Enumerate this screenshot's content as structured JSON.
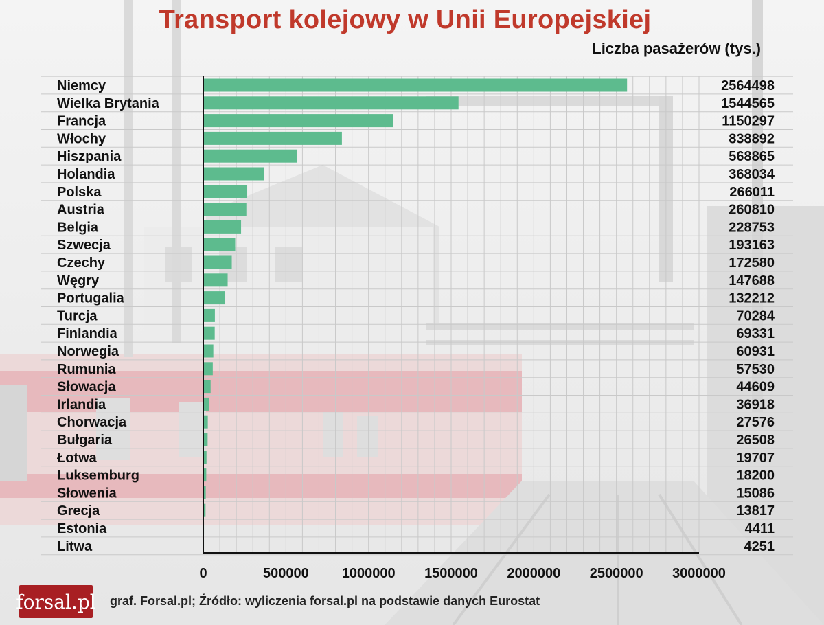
{
  "header": {
    "title": "Transport kolejowy w Unii Europejskiej",
    "subtitle": "Liczba pasażerów (tys.)"
  },
  "footer": {
    "logo": "forsal.pl",
    "source": "graf. Forsal.pl; Źródło: wyliczenia forsal.pl na podstawie danych Eurostat"
  },
  "colors": {
    "bar": "#5dbb8e",
    "title": "#c0392b",
    "logo_bg": "#a81f23"
  },
  "chart_data": {
    "type": "bar",
    "orientation": "horizontal",
    "title": "Transport kolejowy w Unii Europejskiej",
    "subtitle": "Liczba pasażerów (tys.)",
    "categories": [
      "Niemcy",
      "Wielka Brytania",
      "Francja",
      "Włochy",
      "Hiszpania",
      "Holandia",
      "Polska",
      "Austria",
      "Belgia",
      "Szwecja",
      "Czechy",
      "Węgry",
      "Portugalia",
      "Turcja",
      "Finlandia",
      "Norwegia",
      "Rumunia",
      "Słowacja",
      "Irlandia",
      "Chorwacja",
      "Bułgaria",
      "Łotwa",
      "Luksemburg",
      "Słowenia",
      "Grecja",
      "Estonia",
      "Litwa"
    ],
    "values": [
      2564498,
      1544565,
      1150297,
      838892,
      568865,
      368034,
      266011,
      260810,
      228753,
      193163,
      172580,
      147688,
      132212,
      70284,
      69331,
      60931,
      57530,
      44609,
      36918,
      27576,
      26508,
      19707,
      18200,
      15086,
      13817,
      4411,
      4251
    ],
    "value_labels": [
      "2564498",
      "1544565",
      "1150297",
      "838892",
      "568865",
      "368034",
      "266011",
      "260810",
      "228753",
      "193163",
      "172580",
      "147688",
      "132212",
      "70284",
      "69331",
      "60931",
      "57530",
      "44609",
      "36918",
      "27576",
      "26508",
      "19707",
      "18200",
      "15086",
      "13817",
      "4411",
      "4251"
    ],
    "xlim": [
      0,
      3000000
    ],
    "xticks": [
      "0",
      "500000",
      "1000000",
      "1500000",
      "2000000",
      "2500000",
      "3000000"
    ],
    "grid": true
  }
}
